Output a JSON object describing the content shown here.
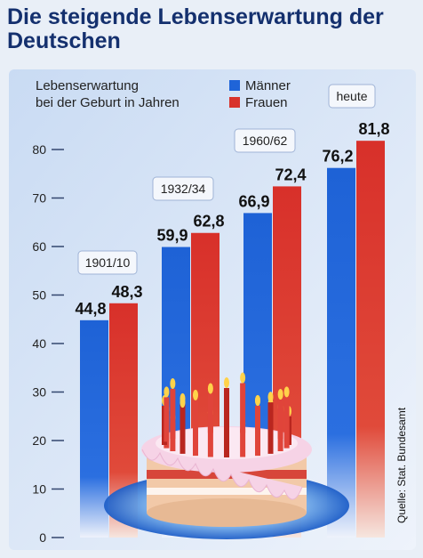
{
  "title": "Die steigende Lebenserwartung der Deutschen",
  "source": "Quelle: Stat. Bundesamt",
  "colors": {
    "maenner": "#1f64d8",
    "frauen": "#d8322c",
    "background": "#e9eff7",
    "title": "#14306e"
  },
  "chart_data": {
    "type": "bar",
    "ylabel": "Lebenserwartung bei der Geburt in Jahren",
    "ylabel_lines": [
      "Lebenserwartung",
      "bei der Geburt in Jahren"
    ],
    "categories": [
      "1901/10",
      "1932/34",
      "1960/62",
      "heute"
    ],
    "series": [
      {
        "name": "Männer",
        "values": [
          44.8,
          59.9,
          66.9,
          76.2
        ],
        "labels": [
          "44,8",
          "59,9",
          "66,9",
          "76,2"
        ]
      },
      {
        "name": "Frauen",
        "values": [
          48.3,
          62.8,
          72.4,
          81.8
        ],
        "labels": [
          "48,3",
          "62,8",
          "72,4",
          "81,8"
        ]
      }
    ],
    "yticks": [
      "0",
      "10",
      "20",
      "30",
      "40",
      "50",
      "60",
      "70",
      "80"
    ],
    "ylim": [
      0,
      80
    ],
    "legend_position": "top-right",
    "grid": false
  }
}
